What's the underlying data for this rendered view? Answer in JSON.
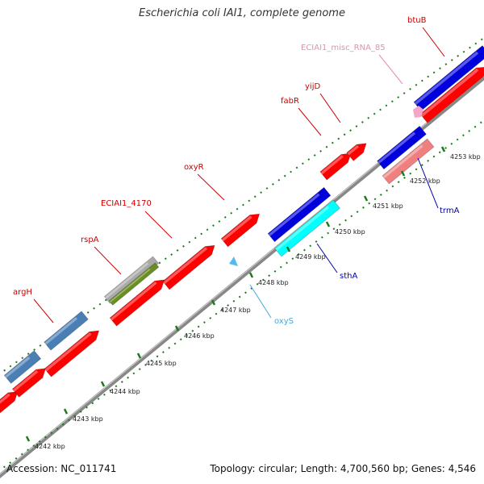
{
  "map": {
    "title": "Escherichia coli IAI1, complete genome",
    "accession": "Accession: NC_011741",
    "summary": "Topology: circular; Length: 4,700,560 bp; Genes: 4,546"
  },
  "colors": {
    "forward_gene": "#ff0000",
    "reverse_gene": "#0000dd",
    "steelblue_gene": "#4a7fb5",
    "cyan_gene": "#00ffff",
    "pink_gene": "#f08080",
    "olive_gene": "#6b8e23",
    "gray_gene": "#aaaaaa",
    "misc_rna": "#f4a6c8",
    "regulator": "#55bbee",
    "backbone": "#888888",
    "tick": "#1a7a1a"
  },
  "ticks": [
    {
      "label": "4242 kbp"
    },
    {
      "label": "4243 kbp"
    },
    {
      "label": "4244 kbp"
    },
    {
      "label": "4245 kbp"
    },
    {
      "label": "4246 kbp"
    },
    {
      "label": "4247 kbp"
    },
    {
      "label": "4248 kbp"
    },
    {
      "label": "4249 kbp"
    },
    {
      "label": "4250 kbp"
    },
    {
      "label": "4251 kbp"
    },
    {
      "label": "4252 kbp"
    },
    {
      "label": "4253 kbp"
    }
  ],
  "labels": [
    {
      "name": "argH",
      "color": "#cc0000"
    },
    {
      "name": "rspA",
      "color": "#cc0000"
    },
    {
      "name": "ECIAI1_4170",
      "color": "#cc0000"
    },
    {
      "name": "oxyR",
      "color": "#cc0000"
    },
    {
      "name": "fabR",
      "color": "#cc0000"
    },
    {
      "name": "yijD",
      "color": "#cc0000"
    },
    {
      "name": "ECIAI1_misc_RNA_85",
      "color": "#e58fb5"
    },
    {
      "name": "btuB",
      "color": "#cc0000"
    },
    {
      "name": "trmA",
      "color": "#0000aa"
    },
    {
      "name": "sthA",
      "color": "#0000aa"
    },
    {
      "name": "oxyS",
      "color": "#44aadd"
    }
  ]
}
